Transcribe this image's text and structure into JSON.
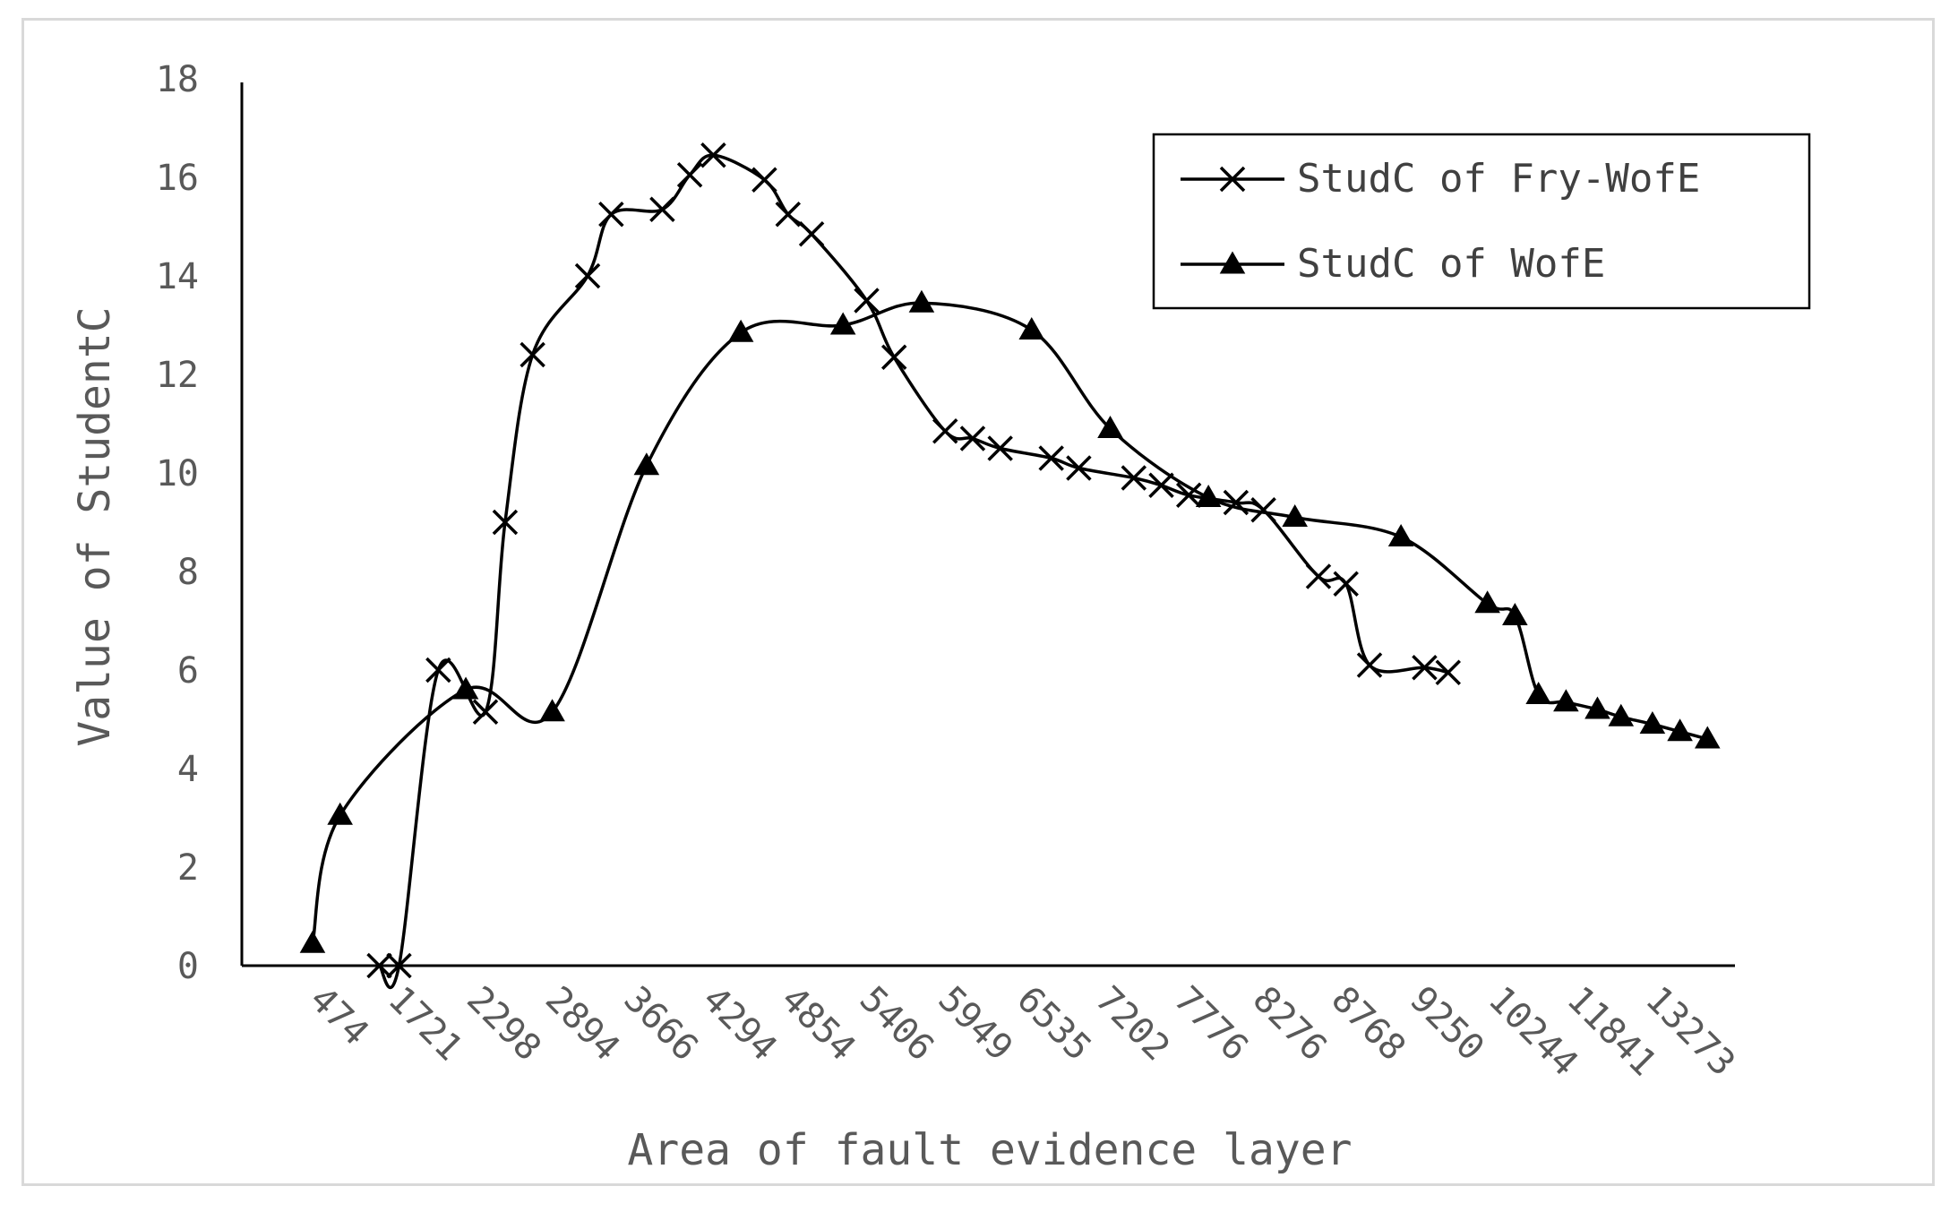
{
  "chart_data": {
    "type": "line",
    "title": "",
    "xlabel": "Area of fault evidence layer",
    "ylabel": "Value of StudentC",
    "ylim": [
      0,
      18
    ],
    "yticks": [
      0,
      2,
      4,
      6,
      8,
      10,
      12,
      14,
      16,
      18
    ],
    "x_tick_labels": [
      "474",
      "1721",
      "2298",
      "2894",
      "3666",
      "4294",
      "4854",
      "5406",
      "5949",
      "6535",
      "7202",
      "7776",
      "8276",
      "8768",
      "9250",
      "10244",
      "11841",
      "13273"
    ],
    "legend_position": "top-right",
    "grid": false,
    "series": [
      {
        "name": "StudC of Fry-WofE",
        "marker": "x",
        "color": "#000000",
        "points": [
          [
            1.75,
            0.0
          ],
          [
            2.0,
            0.0
          ],
          [
            2.5,
            6.0
          ],
          [
            3.1,
            5.15
          ],
          [
            3.35,
            9.0
          ],
          [
            3.7,
            12.4
          ],
          [
            4.4,
            14.0
          ],
          [
            4.7,
            15.25
          ],
          [
            5.35,
            15.35
          ],
          [
            5.7,
            16.05
          ],
          [
            6.0,
            16.45
          ],
          [
            6.65,
            15.95
          ],
          [
            6.95,
            15.25
          ],
          [
            7.25,
            14.85
          ],
          [
            7.95,
            13.5
          ],
          [
            8.3,
            12.35
          ],
          [
            8.95,
            10.85
          ],
          [
            9.3,
            10.7
          ],
          [
            9.65,
            10.5
          ],
          [
            10.3,
            10.3
          ],
          [
            10.65,
            10.1
          ],
          [
            11.35,
            9.9
          ],
          [
            11.7,
            9.75
          ],
          [
            12.05,
            9.55
          ],
          [
            12.65,
            9.4
          ],
          [
            13.0,
            9.25
          ],
          [
            13.7,
            7.9
          ],
          [
            14.05,
            7.75
          ],
          [
            14.35,
            6.1
          ],
          [
            15.05,
            6.05
          ],
          [
            15.35,
            5.95
          ]
        ]
      },
      {
        "name": "StudC of WofE",
        "marker": "triangle",
        "color": "#000000",
        "points": [
          [
            0.9,
            0.45
          ],
          [
            1.25,
            3.05
          ],
          [
            2.85,
            5.6
          ],
          [
            3.95,
            5.15
          ],
          [
            5.15,
            10.15
          ],
          [
            6.35,
            12.85
          ],
          [
            7.65,
            13.0
          ],
          [
            8.65,
            13.45
          ],
          [
            10.05,
            12.9
          ],
          [
            11.05,
            10.9
          ],
          [
            12.3,
            9.5
          ],
          [
            13.4,
            9.1
          ],
          [
            14.75,
            8.7
          ],
          [
            15.85,
            7.35
          ],
          [
            16.2,
            7.1
          ],
          [
            16.5,
            5.5
          ],
          [
            16.85,
            5.35
          ],
          [
            17.25,
            5.2
          ],
          [
            17.55,
            5.05
          ],
          [
            17.95,
            4.9
          ],
          [
            18.3,
            4.75
          ],
          [
            18.65,
            4.6
          ]
        ]
      }
    ]
  }
}
